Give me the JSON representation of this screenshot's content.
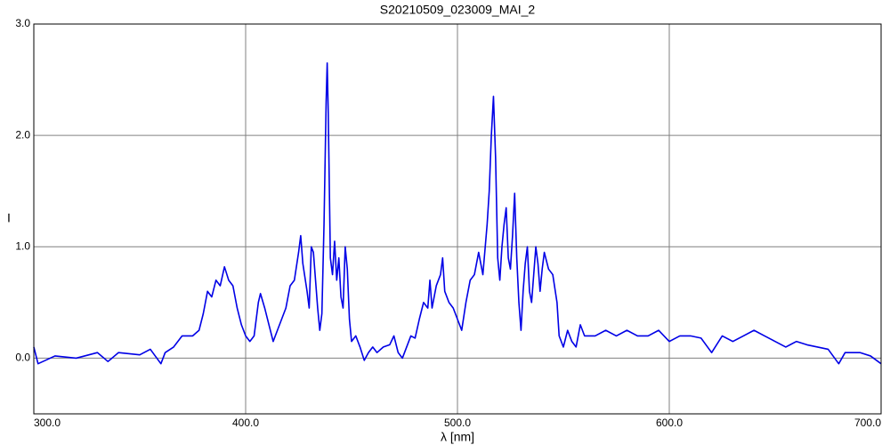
{
  "chart_data": {
    "type": "line",
    "title": "S20210509_023009_MAI_2",
    "x_label": "λ [nm]",
    "y_label": "I",
    "color": "#0000e6",
    "grid": true,
    "xlim": [
      300,
      700
    ],
    "ylim": [
      -0.5,
      3.0
    ],
    "xticks": [
      {
        "value": 300,
        "label": "300.0"
      },
      {
        "value": 400,
        "label": "400.0"
      },
      {
        "value": 500,
        "label": "500.0"
      },
      {
        "value": 600,
        "label": "600.0"
      },
      {
        "value": 700,
        "label": "700.0"
      }
    ],
    "yticks": [
      {
        "value": 0,
        "label": "0.0"
      },
      {
        "value": 1,
        "label": "1.0"
      },
      {
        "value": 2,
        "label": "2.0"
      },
      {
        "value": 3,
        "label": "3.0"
      }
    ],
    "x": [
      300,
      302,
      310,
      320,
      330,
      335,
      340,
      350,
      355,
      360,
      362,
      366,
      370,
      375,
      378,
      380,
      382,
      384,
      386,
      388,
      390,
      392,
      394,
      396,
      398,
      400,
      402,
      404,
      406,
      407,
      409,
      411,
      413,
      415,
      417,
      419,
      421,
      423,
      425,
      426,
      427,
      429,
      430,
      431,
      432,
      434,
      435,
      436,
      437,
      438,
      438.5,
      439,
      440,
      441,
      442,
      443,
      444,
      445,
      446,
      447,
      448,
      449,
      450,
      452,
      454,
      456,
      458,
      460,
      462,
      465,
      468,
      470,
      472,
      474,
      476,
      478,
      480,
      482,
      484,
      486,
      487,
      488,
      490,
      492,
      493,
      494,
      496,
      498,
      500,
      502,
      504,
      506,
      508,
      510,
      512,
      514,
      515,
      516,
      517,
      518,
      519,
      520,
      521,
      522,
      523,
      524,
      525,
      526,
      527,
      528,
      529,
      530,
      531,
      532,
      533,
      534,
      535,
      536,
      537,
      538,
      539,
      540,
      541,
      543,
      545,
      547,
      548,
      550,
      552,
      554,
      556,
      558,
      560,
      565,
      570,
      575,
      580,
      585,
      590,
      595,
      600,
      605,
      610,
      615,
      620,
      625,
      630,
      635,
      640,
      645,
      650,
      655,
      660,
      665,
      670,
      675,
      680,
      683,
      690,
      695,
      700
    ],
    "values": [
      0.1,
      -0.05,
      0.02,
      0.0,
      0.05,
      -0.03,
      0.05,
      0.03,
      0.08,
      -0.05,
      0.05,
      0.1,
      0.2,
      0.2,
      0.25,
      0.4,
      0.6,
      0.55,
      0.7,
      0.65,
      0.82,
      0.7,
      0.65,
      0.45,
      0.3,
      0.2,
      0.15,
      0.2,
      0.5,
      0.58,
      0.45,
      0.3,
      0.15,
      0.25,
      0.35,
      0.45,
      0.65,
      0.7,
      0.95,
      1.1,
      0.85,
      0.6,
      0.45,
      1.0,
      0.95,
      0.45,
      0.25,
      0.4,
      1.2,
      2.3,
      2.65,
      2.2,
      0.9,
      0.75,
      1.05,
      0.7,
      0.9,
      0.55,
      0.45,
      1.0,
      0.8,
      0.35,
      0.15,
      0.2,
      0.1,
      -0.02,
      0.05,
      0.1,
      0.05,
      0.1,
      0.12,
      0.2,
      0.05,
      0.0,
      0.1,
      0.2,
      0.18,
      0.35,
      0.5,
      0.45,
      0.7,
      0.45,
      0.65,
      0.75,
      0.9,
      0.6,
      0.5,
      0.45,
      0.35,
      0.25,
      0.5,
      0.7,
      0.75,
      0.95,
      0.75,
      1.2,
      1.5,
      2.0,
      2.35,
      1.8,
      0.9,
      0.7,
      1.0,
      1.2,
      1.35,
      0.9,
      0.8,
      1.1,
      1.48,
      0.9,
      0.5,
      0.25,
      0.6,
      0.85,
      1.0,
      0.6,
      0.5,
      0.75,
      1.0,
      0.85,
      0.6,
      0.8,
      0.95,
      0.8,
      0.75,
      0.5,
      0.2,
      0.1,
      0.25,
      0.15,
      0.1,
      0.3,
      0.2,
      0.2,
      0.25,
      0.2,
      0.25,
      0.2,
      0.2,
      0.25,
      0.15,
      0.2,
      0.2,
      0.18,
      0.05,
      0.2,
      0.15,
      0.2,
      0.25,
      0.2,
      0.15,
      0.1,
      0.15,
      0.12,
      0.1,
      0.08,
      -0.05,
      0.05,
      0.05,
      0.02,
      -0.05
    ]
  }
}
